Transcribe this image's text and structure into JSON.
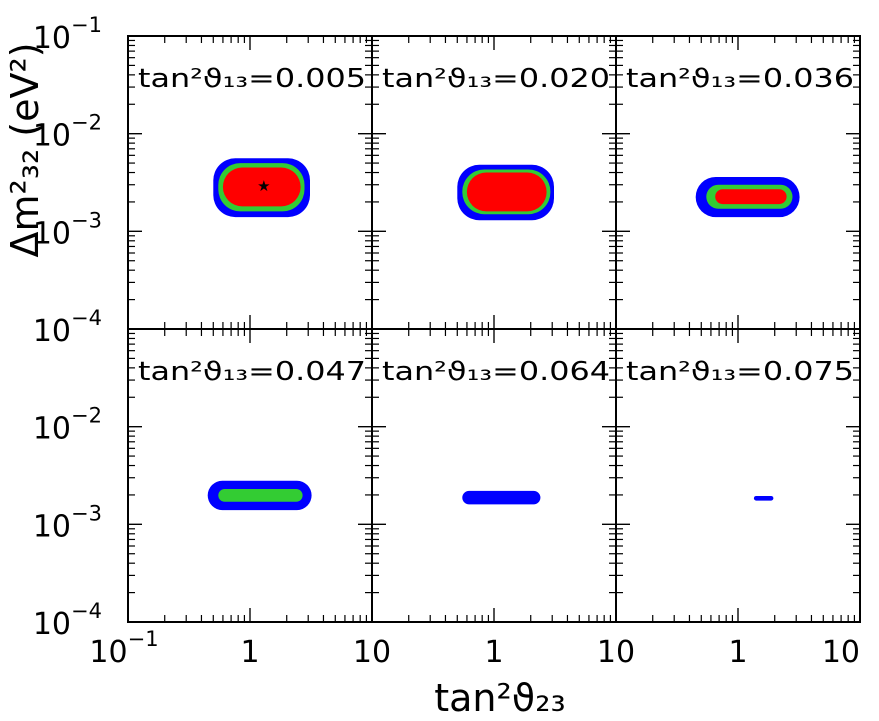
{
  "chart_data": {
    "type": "scatter",
    "title": "",
    "xlabel": "tan²ϑ₂₃",
    "ylabel": "Δm²₃₂ (eV²)",
    "xscale": "log",
    "yscale": "log",
    "xlim": [
      0.1,
      10
    ],
    "ylim": [
      0.0001,
      0.1
    ],
    "x_ticks": [
      {
        "value": 0.1,
        "label": "10",
        "sup": "−1"
      },
      {
        "value": 1,
        "label": "1",
        "sup": ""
      },
      {
        "value": 10,
        "label": "10",
        "sup": ""
      }
    ],
    "y_ticks": [
      {
        "value": 0.1,
        "label": "10",
        "sup": "−1"
      },
      {
        "value": 0.01,
        "label": "10",
        "sup": "−2"
      },
      {
        "value": 0.001,
        "label": "10",
        "sup": "−3"
      },
      {
        "value": 0.0001,
        "label": "10",
        "sup": "−4"
      }
    ],
    "grid": false,
    "colors": {
      "outer": "#0000ff",
      "middle": "#33cc33",
      "inner": "#ff0000",
      "frame": "#000000"
    },
    "best_fit": {
      "x": 1.3,
      "y": 0.0029,
      "marker": "star"
    },
    "panels": [
      {
        "label": "tan²ϑ₁₃=0.005",
        "regions": [
          {
            "level": "outer",
            "x": [
              0.5,
              3.1
            ],
            "y": [
              0.0014,
              0.0056
            ]
          },
          {
            "level": "middle",
            "x": [
              0.55,
              2.8
            ],
            "y": [
              0.0016,
              0.005
            ]
          },
          {
            "level": "inner",
            "x": [
              0.6,
              2.6
            ],
            "y": [
              0.0018,
              0.0045
            ]
          }
        ]
      },
      {
        "label": "tan²ϑ₁₃=0.020",
        "regions": [
          {
            "level": "outer",
            "x": [
              0.5,
              3.1
            ],
            "y": [
              0.0013,
              0.0048
            ]
          },
          {
            "level": "middle",
            "x": [
              0.55,
              2.9
            ],
            "y": [
              0.0015,
              0.0043
            ]
          },
          {
            "level": "inner",
            "x": [
              0.6,
              2.7
            ],
            "y": [
              0.0016,
              0.004
            ]
          }
        ]
      },
      {
        "label": "tan²ϑ₁₃=0.036",
        "regions": [
          {
            "level": "outer",
            "x": [
              0.45,
              3.2
            ],
            "y": [
              0.0014,
              0.0036
            ]
          },
          {
            "level": "middle",
            "x": [
              0.55,
              2.8
            ],
            "y": [
              0.0017,
              0.003
            ]
          },
          {
            "level": "inner",
            "x": [
              0.65,
              2.5
            ],
            "y": [
              0.0019,
              0.0027
            ]
          }
        ]
      },
      {
        "label": "tan²ϑ₁₃=0.047",
        "regions": [
          {
            "level": "outer",
            "x": [
              0.45,
              3.2
            ],
            "y": [
              0.0014,
              0.0028
            ]
          },
          {
            "level": "middle",
            "x": [
              0.55,
              2.7
            ],
            "y": [
              0.0017,
              0.0023
            ]
          }
        ]
      },
      {
        "label": "tan²ϑ₁₃=0.064",
        "regions": [
          {
            "level": "outer",
            "x": [
              0.55,
              2.4
            ],
            "y": [
              0.0016,
              0.0022
            ]
          }
        ]
      },
      {
        "label": "tan²ϑ₁₃=0.075",
        "regions": [
          {
            "level": "outer",
            "x": [
              1.35,
              1.95
            ],
            "y": [
              0.00175,
              0.00195
            ]
          }
        ]
      }
    ]
  }
}
